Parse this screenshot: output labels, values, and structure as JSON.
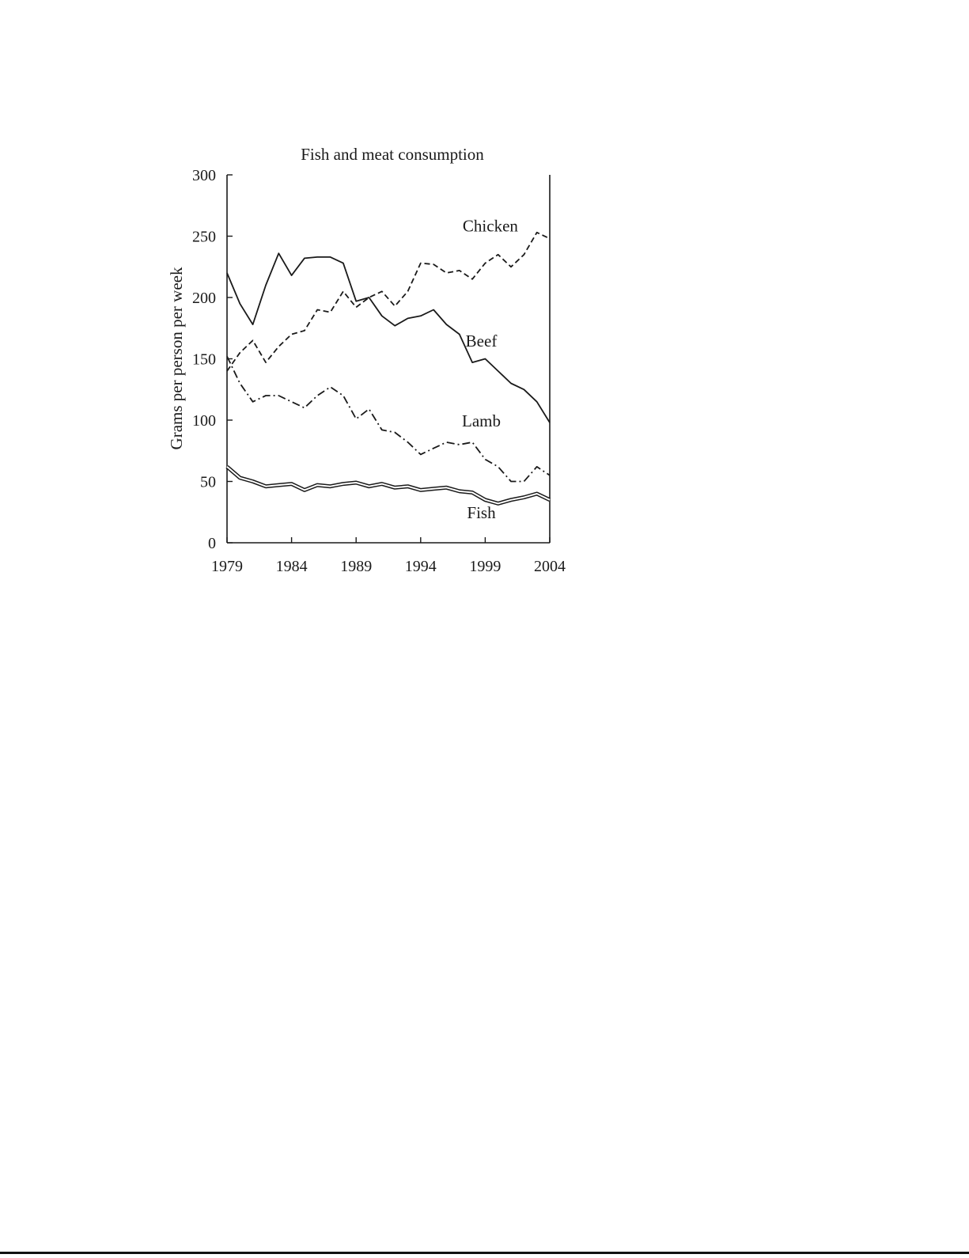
{
  "chart_data": {
    "type": "line",
    "title": "Fish and meat consumption",
    "xlabel": "",
    "ylabel": "Grams per person per week",
    "xlim": [
      1979,
      2004
    ],
    "ylim": [
      0,
      300
    ],
    "x_ticks": [
      1979,
      1984,
      1989,
      1994,
      1999,
      2004
    ],
    "y_ticks": [
      0,
      50,
      100,
      150,
      200,
      250,
      300
    ],
    "grid": false,
    "legend": "direct labels on lines",
    "x": [
      1979,
      1980,
      1981,
      1982,
      1983,
      1984,
      1985,
      1986,
      1987,
      1988,
      1989,
      1990,
      1991,
      1992,
      1993,
      1994,
      1995,
      1996,
      1997,
      1998,
      1999,
      2000,
      2001,
      2002,
      2003,
      2004
    ],
    "series": [
      {
        "name": "Chicken",
        "style": "dashed",
        "values": [
          140,
          155,
          165,
          147,
          160,
          170,
          173,
          190,
          188,
          205,
          192,
          200,
          205,
          193,
          205,
          228,
          227,
          220,
          222,
          215,
          228,
          235,
          225,
          235,
          253,
          248
        ]
      },
      {
        "name": "Beef",
        "style": "solid",
        "values": [
          220,
          195,
          178,
          210,
          236,
          218,
          232,
          233,
          233,
          228,
          197,
          200,
          185,
          177,
          183,
          185,
          190,
          178,
          170,
          147,
          150,
          140,
          130,
          125,
          115,
          98
        ]
      },
      {
        "name": "Lamb",
        "style": "dash-dot",
        "values": [
          152,
          130,
          115,
          120,
          120,
          115,
          110,
          120,
          127,
          120,
          101,
          109,
          92,
          90,
          82,
          72,
          77,
          82,
          80,
          82,
          68,
          62,
          50,
          50,
          62,
          55
        ]
      },
      {
        "name": "Fish",
        "style": "double",
        "values": [
          62,
          53,
          50,
          46,
          47,
          48,
          43,
          47,
          46,
          48,
          49,
          46,
          48,
          45,
          46,
          43,
          44,
          45,
          42,
          41,
          35,
          32,
          35,
          37,
          40,
          35
        ]
      }
    ]
  }
}
